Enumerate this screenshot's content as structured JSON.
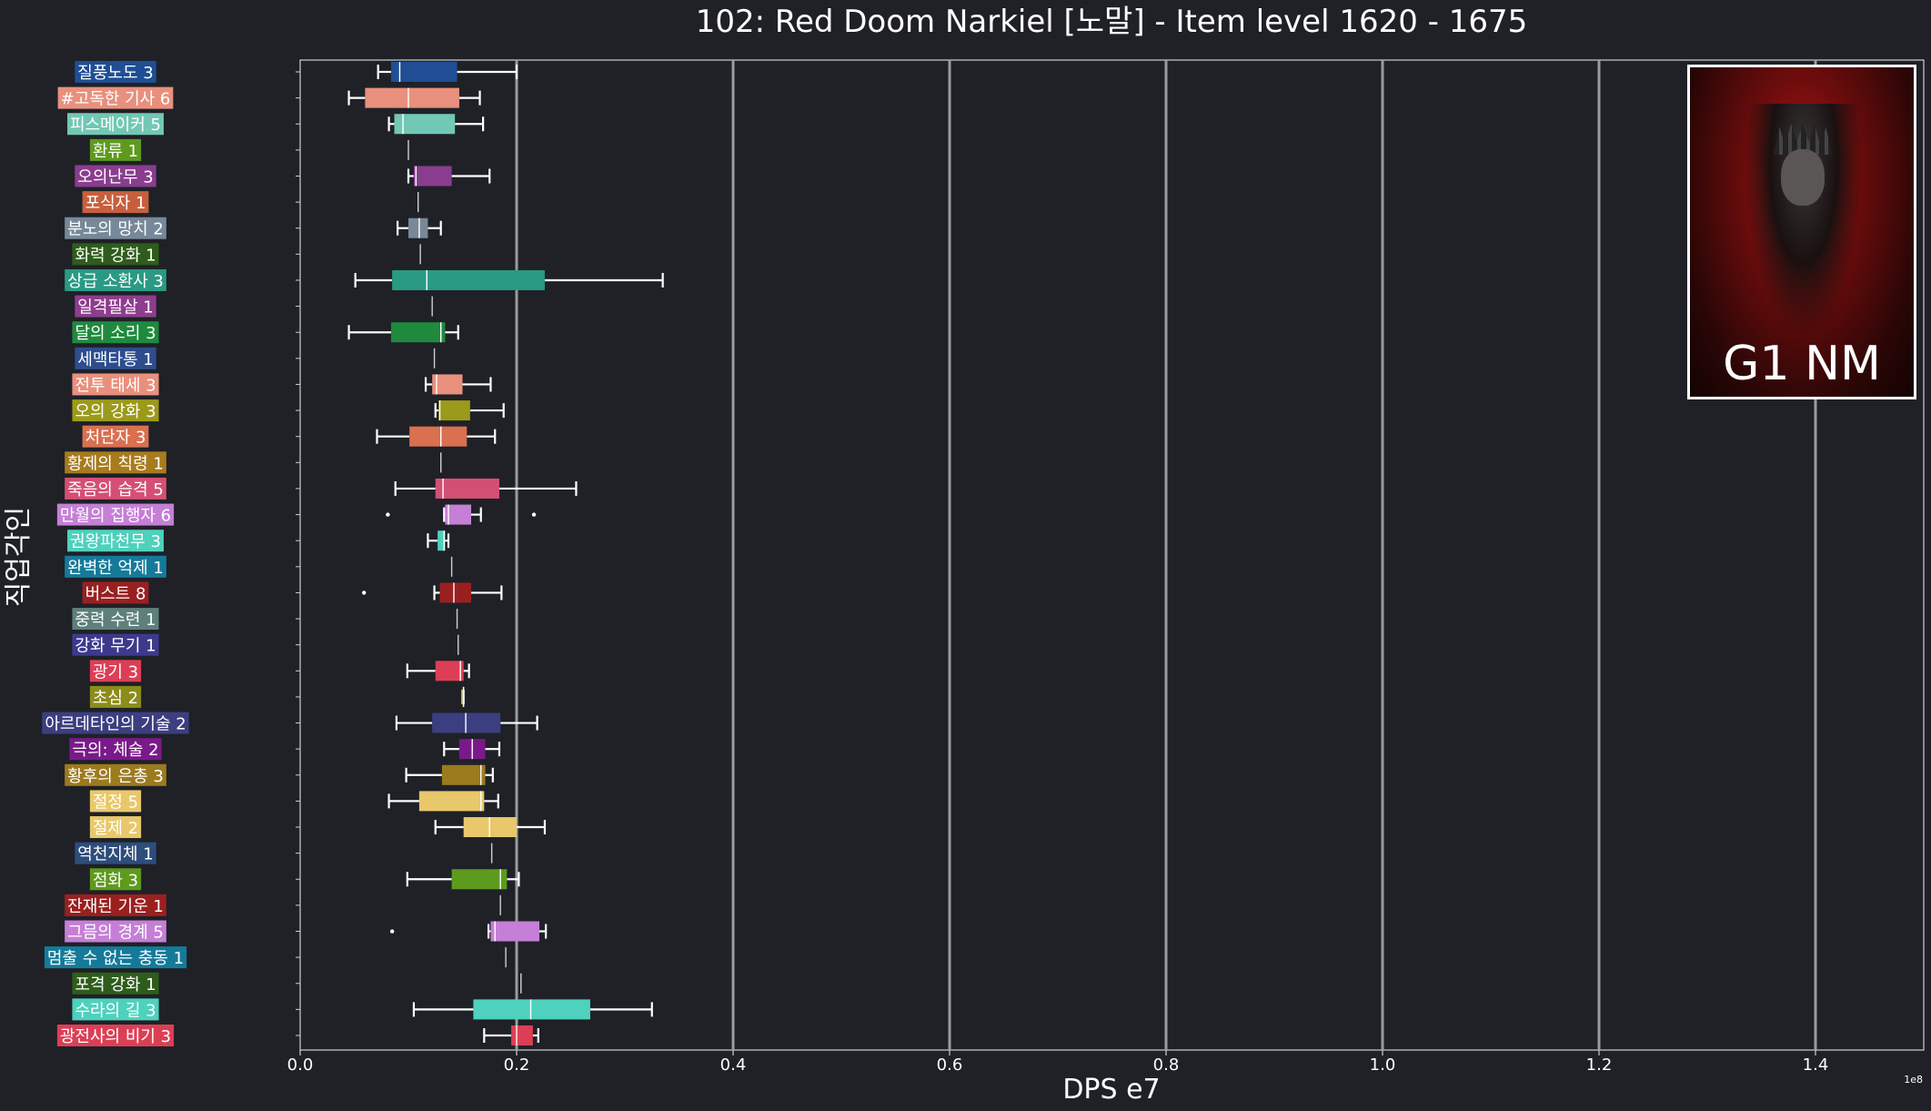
{
  "title": "102: Red Doom Narkiel [노말] - Item level 1620 - 1675",
  "portrait": {
    "label": "G1 NM"
  },
  "chart_data": {
    "type": "box",
    "orientation": "horizontal",
    "title": "102: Red Doom Narkiel [노말] - Item level 1620 - 1675",
    "xlabel": "DPS e7",
    "ylabel": "직업각인",
    "x_offset_label": "1e8",
    "xlim": [
      0,
      1.5
    ],
    "xticks": [
      0.0,
      0.2,
      0.4,
      0.6,
      0.8,
      1.0,
      1.2,
      1.4
    ],
    "xtick_labels": [
      "0.0",
      "0.2",
      "0.4",
      "0.6",
      "0.8",
      "1.0",
      "1.2",
      "1.4"
    ],
    "grid": "vertical",
    "categories": [
      {
        "label": "질풍노도 3",
        "color": "#1f4e94",
        "min": 0.072,
        "q1": 0.084,
        "median": 0.092,
        "q3": 0.145,
        "max": 0.2,
        "outliers": []
      },
      {
        "label": "#고독한 기사 6",
        "color": "#e8907d",
        "min": 0.045,
        "q1": 0.06,
        "median": 0.1,
        "q3": 0.147,
        "max": 0.166,
        "outliers": []
      },
      {
        "label": "피스메이커 5",
        "color": "#72c8b4",
        "min": 0.082,
        "q1": 0.087,
        "median": 0.095,
        "q3": 0.143,
        "max": 0.169,
        "outliers": []
      },
      {
        "label": "환류 1",
        "color": "#5e9a1e",
        "min": 0.1,
        "q1": 0.1,
        "median": 0.1,
        "q3": 0.1,
        "max": 0.1,
        "outliers": []
      },
      {
        "label": "오의난무 3",
        "color": "#8a3d8e",
        "min": 0.1,
        "q1": 0.105,
        "median": 0.107,
        "q3": 0.14,
        "max": 0.175,
        "outliers": []
      },
      {
        "label": "포식자 1",
        "color": "#c75f3e",
        "min": 0.109,
        "q1": 0.109,
        "median": 0.109,
        "q3": 0.109,
        "max": 0.109,
        "outliers": []
      },
      {
        "label": "분노의 망치 2",
        "color": "#778899",
        "min": 0.09,
        "q1": 0.1,
        "median": 0.11,
        "q3": 0.118,
        "max": 0.13,
        "outliers": []
      },
      {
        "label": "화력 강화 1",
        "color": "#2e5d1b",
        "min": 0.111,
        "q1": 0.111,
        "median": 0.111,
        "q3": 0.111,
        "max": 0.111,
        "outliers": []
      },
      {
        "label": "상급 소환사 3",
        "color": "#2a9a84",
        "min": 0.051,
        "q1": 0.085,
        "median": 0.117,
        "q3": 0.226,
        "max": 0.335,
        "outliers": []
      },
      {
        "label": "일격필살 1",
        "color": "#8e3d8e",
        "min": 0.122,
        "q1": 0.122,
        "median": 0.122,
        "q3": 0.122,
        "max": 0.122,
        "outliers": []
      },
      {
        "label": "달의 소리 3",
        "color": "#1f8a3e",
        "min": 0.045,
        "q1": 0.084,
        "median": 0.13,
        "q3": 0.134,
        "max": 0.146,
        "outliers": []
      },
      {
        "label": "세맥타통 1",
        "color": "#2d4d8e",
        "min": 0.124,
        "q1": 0.124,
        "median": 0.124,
        "q3": 0.124,
        "max": 0.124,
        "outliers": []
      },
      {
        "label": "전투 태세 3",
        "color": "#e8907d",
        "min": 0.116,
        "q1": 0.122,
        "median": 0.126,
        "q3": 0.15,
        "max": 0.176,
        "outliers": []
      },
      {
        "label": "오의 강화 3",
        "color": "#9c9a1a",
        "min": 0.125,
        "q1": 0.128,
        "median": 0.129,
        "q3": 0.157,
        "max": 0.188,
        "outliers": []
      },
      {
        "label": "처단자 3",
        "color": "#d97050",
        "min": 0.071,
        "q1": 0.101,
        "median": 0.13,
        "q3": 0.154,
        "max": 0.18,
        "outliers": []
      },
      {
        "label": "황제의 칙령 1",
        "color": "#a77b1e",
        "min": 0.13,
        "q1": 0.13,
        "median": 0.13,
        "q3": 0.13,
        "max": 0.13,
        "outliers": []
      },
      {
        "label": "죽음의 습격 5",
        "color": "#d44f74",
        "min": 0.088,
        "q1": 0.125,
        "median": 0.132,
        "q3": 0.184,
        "max": 0.255,
        "outliers": []
      },
      {
        "label": "만월의 집행자 6",
        "color": "#c57fd6",
        "min": 0.133,
        "q1": 0.134,
        "median": 0.137,
        "q3": 0.158,
        "max": 0.167,
        "outliers": [
          0.081,
          0.216
        ]
      },
      {
        "label": "권왕파천무 3",
        "color": "#4ed1bd",
        "min": 0.118,
        "q1": 0.127,
        "median": 0.133,
        "q3": 0.134,
        "max": 0.137,
        "outliers": []
      },
      {
        "label": "완벽한 억제 1",
        "color": "#157a9a",
        "min": 0.14,
        "q1": 0.14,
        "median": 0.14,
        "q3": 0.14,
        "max": 0.14,
        "outliers": []
      },
      {
        "label": "버스트 8",
        "color": "#9a2020",
        "min": 0.124,
        "q1": 0.129,
        "median": 0.142,
        "q3": 0.158,
        "max": 0.186,
        "outliers": [
          0.059
        ]
      },
      {
        "label": "중력 수련 1",
        "color": "#5f7f7a",
        "min": 0.145,
        "q1": 0.145,
        "median": 0.145,
        "q3": 0.145,
        "max": 0.145,
        "outliers": []
      },
      {
        "label": "강화 무기 1",
        "color": "#3d3a8e",
        "min": 0.146,
        "q1": 0.146,
        "median": 0.146,
        "q3": 0.146,
        "max": 0.146,
        "outliers": []
      },
      {
        "label": "광기 3",
        "color": "#dc3f55",
        "min": 0.099,
        "q1": 0.125,
        "median": 0.148,
        "q3": 0.151,
        "max": 0.156,
        "outliers": []
      },
      {
        "label": "초심 2",
        "color": "#8c8c1a",
        "min": 0.15,
        "q1": 0.15,
        "median": 0.151,
        "q3": 0.151,
        "max": 0.151,
        "outliers": []
      },
      {
        "label": "아르데타인의 기술 2",
        "color": "#3b3f80",
        "min": 0.089,
        "q1": 0.122,
        "median": 0.153,
        "q3": 0.185,
        "max": 0.219,
        "outliers": []
      },
      {
        "label": "극의: 체술 2",
        "color": "#7a1a8a",
        "min": 0.133,
        "q1": 0.147,
        "median": 0.159,
        "q3": 0.171,
        "max": 0.184,
        "outliers": []
      },
      {
        "label": "황후의 은총 3",
        "color": "#9c7b1e",
        "min": 0.098,
        "q1": 0.131,
        "median": 0.167,
        "q3": 0.171,
        "max": 0.178,
        "outliers": []
      },
      {
        "label": "절정 5",
        "color": "#e8c86a",
        "min": 0.082,
        "q1": 0.11,
        "median": 0.167,
        "q3": 0.17,
        "max": 0.183,
        "outliers": []
      },
      {
        "label": "절제 2",
        "color": "#e8c86a",
        "min": 0.125,
        "q1": 0.151,
        "median": 0.175,
        "q3": 0.2,
        "max": 0.226,
        "outliers": []
      },
      {
        "label": "역천지체 1",
        "color": "#2d4d7a",
        "min": 0.177,
        "q1": 0.177,
        "median": 0.177,
        "q3": 0.177,
        "max": 0.177,
        "outliers": []
      },
      {
        "label": "점화 3",
        "color": "#5e9a1e",
        "min": 0.099,
        "q1": 0.14,
        "median": 0.185,
        "q3": 0.191,
        "max": 0.202,
        "outliers": []
      },
      {
        "label": "잔재된 기운 1",
        "color": "#9a2020",
        "min": 0.185,
        "q1": 0.185,
        "median": 0.185,
        "q3": 0.185,
        "max": 0.185,
        "outliers": []
      },
      {
        "label": "그믐의 경계 5",
        "color": "#c57fd6",
        "min": 0.174,
        "q1": 0.176,
        "median": 0.18,
        "q3": 0.221,
        "max": 0.227,
        "outliers": [
          0.085
        ]
      },
      {
        "label": "멈출 수 없는 충동 1",
        "color": "#157a9a",
        "min": 0.19,
        "q1": 0.19,
        "median": 0.19,
        "q3": 0.19,
        "max": 0.19,
        "outliers": []
      },
      {
        "label": "포격 강화 1",
        "color": "#2e5d1b",
        "min": 0.204,
        "q1": 0.204,
        "median": 0.204,
        "q3": 0.204,
        "max": 0.204,
        "outliers": []
      },
      {
        "label": "수라의 길 3",
        "color": "#4ed1bd",
        "min": 0.105,
        "q1": 0.16,
        "median": 0.213,
        "q3": 0.268,
        "max": 0.325,
        "outliers": []
      },
      {
        "label": "광전사의 비기 3",
        "color": "#dc3f55",
        "min": 0.17,
        "q1": 0.195,
        "median": 0.2,
        "q3": 0.215,
        "max": 0.22,
        "outliers": []
      }
    ]
  }
}
